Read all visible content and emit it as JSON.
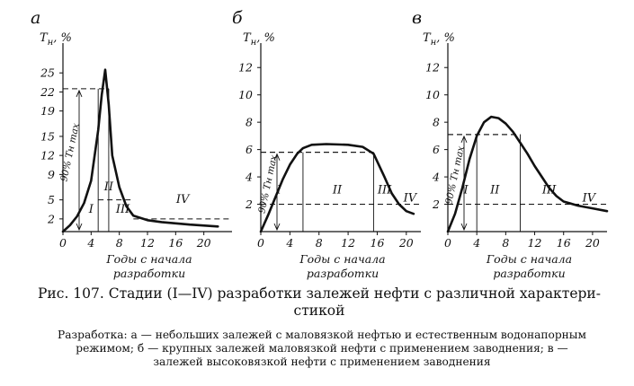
{
  "caption": {
    "line1": "Рис. 107. Стадии (I—IV) разработки залежей нефти с различной характери-",
    "line2": "стикой"
  },
  "note": {
    "line1": "Разработка: а — небольших залежей с маловязкой нефтью и естественным водонапорным",
    "line2": "режимом; б — крупных залежей маловязкой нефти с применением заводнения; в —",
    "line3": "залежей высоковязкой нефти с применением заводнения"
  },
  "chart_data": [
    {
      "type": "line",
      "panel_letter": "а",
      "ylabel": "Tн, %",
      "xlabel": "Годы с начала разработки",
      "x_ticks": [
        0,
        4,
        8,
        12,
        16,
        20
      ],
      "y_ticks": [
        2,
        5,
        9,
        12,
        15,
        19,
        22,
        25
      ],
      "xlim": [
        0,
        24
      ],
      "ylim": [
        0,
        28
      ],
      "series": [
        {
          "x": [
            0,
            1,
            2,
            3,
            4,
            5,
            5.5,
            6,
            6.5,
            7,
            8,
            9,
            10,
            12,
            14,
            18,
            22
          ],
          "y": [
            0,
            1,
            2.4,
            4.5,
            8,
            16,
            21.5,
            25.5,
            20,
            12,
            7,
            4,
            2.5,
            1.8,
            1.5,
            1.1,
            0.8
          ]
        }
      ],
      "annotations": {
        "ninety_label": "90% Tн max",
        "ninety_y": 22.5,
        "vlines_x": [
          5,
          6.5
        ],
        "dashes": [
          {
            "x1": 5,
            "x2": 10,
            "y": 5
          },
          {
            "x1": 10,
            "x2": 24,
            "y": 2
          }
        ],
        "stages": [
          {
            "label": "I",
            "x": 4,
            "y": 3
          },
          {
            "label": "II",
            "x": 6.5,
            "y": 6.5
          },
          {
            "label": "III",
            "x": 8.5,
            "y": 3
          },
          {
            "label": "IV",
            "x": 17,
            "y": 4.5
          }
        ]
      }
    },
    {
      "type": "line",
      "panel_letter": "б",
      "ylabel": "Tн, %",
      "xlabel": "Годы с начала разработки",
      "x_ticks": [
        0,
        4,
        8,
        12,
        16,
        20
      ],
      "y_ticks": [
        2,
        4,
        6,
        8,
        10,
        12
      ],
      "xlim": [
        0,
        22
      ],
      "ylim": [
        0,
        13
      ],
      "series": [
        {
          "x": [
            0,
            1,
            2,
            3,
            4,
            5,
            5.8,
            7,
            9,
            12,
            14,
            15.5,
            17,
            18,
            19,
            20,
            21
          ],
          "y": [
            0,
            1.2,
            2.5,
            3.8,
            4.9,
            5.7,
            6.1,
            6.35,
            6.4,
            6.35,
            6.2,
            5.7,
            4.0,
            2.8,
            2.0,
            1.5,
            1.3
          ]
        }
      ],
      "annotations": {
        "ninety_label": "90% Tн max",
        "ninety_y": 5.8,
        "vlines_x": [
          5.8,
          15.5
        ],
        "dashes": [
          {
            "x1": 0,
            "x2": 15.5,
            "y": 5.8
          },
          {
            "x1": 0,
            "x2": 22,
            "y": 2
          }
        ],
        "stages": [
          {
            "label": "I",
            "x": 2.5,
            "y": 2.8
          },
          {
            "label": "II",
            "x": 10.5,
            "y": 2.8
          },
          {
            "label": "III",
            "x": 17,
            "y": 2.8
          },
          {
            "label": "IV",
            "x": 20.5,
            "y": 2.2
          }
        ]
      }
    },
    {
      "type": "line",
      "panel_letter": "в",
      "ylabel": "Tн, %",
      "xlabel": "Годы с начала разработки",
      "x_ticks": [
        0,
        4,
        8,
        12,
        16,
        20
      ],
      "y_ticks": [
        2,
        4,
        6,
        8,
        10,
        12
      ],
      "xlim": [
        0,
        22
      ],
      "ylim": [
        0,
        13
      ],
      "series": [
        {
          "x": [
            0,
            1,
            2,
            3,
            4,
            5,
            6,
            7,
            8,
            9,
            10,
            11,
            12,
            13,
            14,
            15,
            16,
            18,
            20,
            22
          ],
          "y": [
            0,
            1.3,
            3.2,
            5.3,
            7.0,
            8.0,
            8.4,
            8.3,
            7.9,
            7.3,
            6.5,
            5.7,
            4.8,
            4.0,
            3.2,
            2.6,
            2.2,
            1.9,
            1.7,
            1.5
          ]
        }
      ],
      "annotations": {
        "ninety_label": "90% Tн max",
        "ninety_y": 7.1,
        "vlines_x": [
          4,
          10
        ],
        "dashes": [
          {
            "x1": 0,
            "x2": 10,
            "y": 7.1
          },
          {
            "x1": 0,
            "x2": 22,
            "y": 2
          }
        ],
        "stages": [
          {
            "label": "I",
            "x": 2.5,
            "y": 2.8
          },
          {
            "label": "II",
            "x": 6.5,
            "y": 2.8
          },
          {
            "label": "III",
            "x": 14,
            "y": 2.8
          },
          {
            "label": "IV",
            "x": 19.5,
            "y": 2.2
          }
        ]
      }
    }
  ]
}
